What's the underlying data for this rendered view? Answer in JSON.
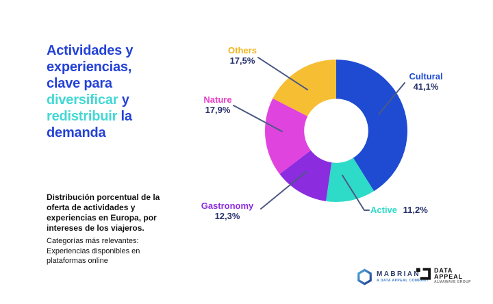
{
  "palette": {
    "title_blue": "#2442d6",
    "title_teal": "#42d8d5",
    "navy": "#27306b",
    "leader_line": "#4d5983",
    "cultural": "#1e4bd2",
    "active": "#2edac8",
    "gastronomy": "#8b2cdf",
    "nature": "#e044df",
    "others": "#f6be33",
    "cultural_label": "#1e4bd2",
    "active_label": "#2edac8",
    "gastronomy_label": "#8b2cdf",
    "nature_label": "#e83ec6",
    "others_label": "#f2b41f",
    "text_black": "#111111",
    "background": "#ffffff"
  },
  "title": {
    "full_text": "Actividades y experiencias, clave para diversificar y redistribuir la demanda",
    "lines": [
      [
        {
          "text": "Actividades y",
          "color": "title_blue"
        }
      ],
      [
        {
          "text": "experiencias,",
          "color": "title_blue"
        }
      ],
      [
        {
          "text": "clave para",
          "color": "title_blue"
        }
      ],
      [
        {
          "text": "diversificar",
          "color": "title_teal"
        },
        {
          "text": " y",
          "color": "title_blue"
        }
      ],
      [
        {
          "text": "redistribuir",
          "color": "title_teal"
        },
        {
          "text": " la",
          "color": "title_blue"
        }
      ],
      [
        {
          "text": "demanda",
          "color": "title_blue"
        }
      ]
    ]
  },
  "description": {
    "bold_text": "Distribución porcentual de la\noferta de actividades y\nexperiencias en Europa, por\nintereses de los viajeros.",
    "note_text": "Categorías más relevantes:\nExperiencias disponibles en\nplataformas online"
  },
  "chart_data": {
    "type": "pie",
    "subtype": "donut",
    "title": "",
    "categories": [
      "Cultural",
      "Active",
      "Gastronomy",
      "Nature",
      "Others"
    ],
    "values": [
      41.1,
      11.2,
      12.3,
      17.9,
      17.5
    ],
    "value_labels": [
      "41,1%",
      "11,2%",
      "12,3%",
      "17,9%",
      "17,5%"
    ],
    "color_keys": [
      "cultural",
      "active",
      "gastronomy",
      "nature",
      "others"
    ],
    "start_angle_deg": 0,
    "direction": "clockwise",
    "inner_radius_ratio": 0.45,
    "legend_position": "callout-labels"
  },
  "logos": {
    "mabrian": {
      "name": "MABRIAN",
      "tagline": "A DATA APPEAL COMPANY"
    },
    "data_appeal": {
      "line1": "DATA",
      "line2": "APPEAL",
      "tagline": "ALMAWAVE GROUP"
    }
  }
}
